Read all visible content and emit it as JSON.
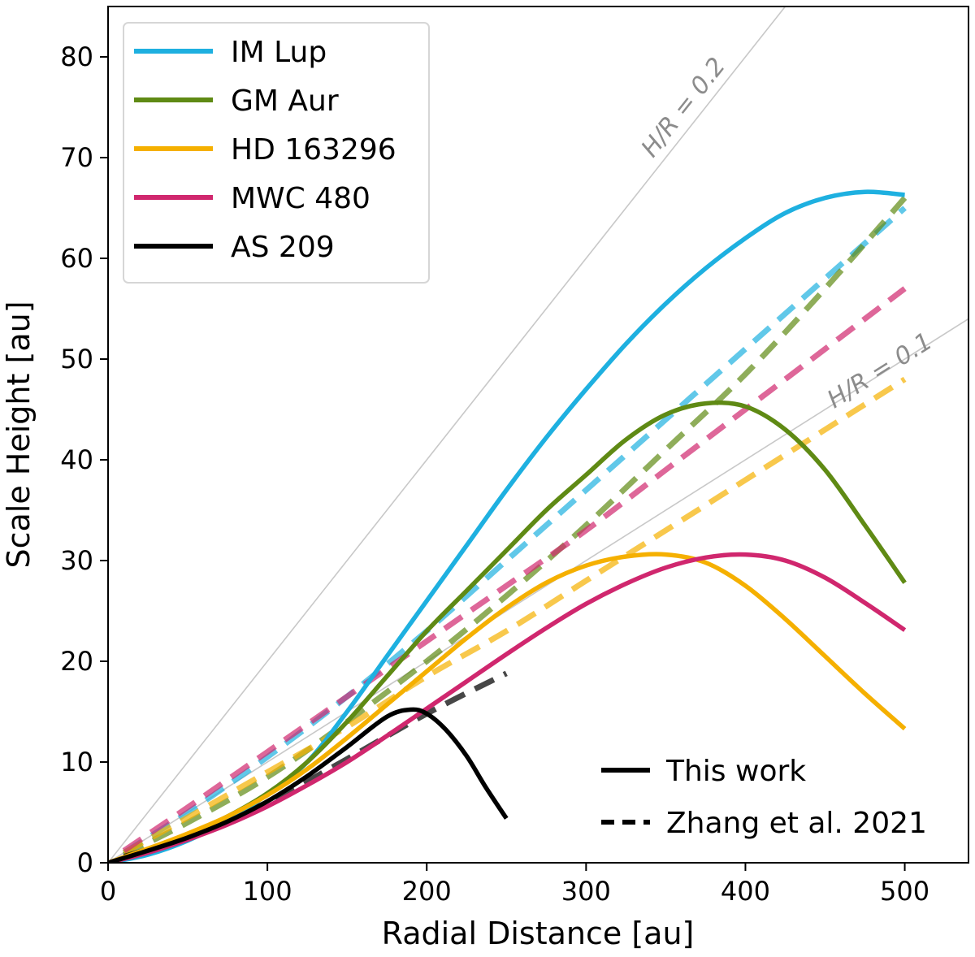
{
  "chart_data": {
    "type": "line",
    "title": "",
    "xlabel": "Radial Distance [au]",
    "ylabel": "Scale Height [au]",
    "xlim": [
      0,
      540
    ],
    "ylim": [
      0,
      85
    ],
    "xticks": [
      0,
      100,
      200,
      300,
      400,
      500
    ],
    "yticks": [
      0,
      10,
      20,
      30,
      40,
      50,
      60,
      70,
      80
    ],
    "grid": false,
    "legend_position": "top-left",
    "series": [
      {
        "name": "IM Lup",
        "color": "#1eb0e0",
        "this_work": {
          "x": [
            0,
            25,
            50,
            75,
            100,
            125,
            150,
            175,
            200,
            225,
            250,
            275,
            300,
            325,
            350,
            375,
            400,
            425,
            450,
            475,
            500
          ],
          "y": [
            0,
            0.8,
            2.2,
            4.2,
            6.8,
            10.0,
            15.0,
            20.5,
            26.0,
            31.5,
            37.0,
            42.2,
            47.0,
            51.5,
            55.5,
            59.0,
            62.0,
            64.5,
            66.0,
            66.6,
            66.3
          ]
        },
        "zhang_2021": {
          "x": [
            10,
            50,
            100,
            150,
            200,
            250,
            300,
            350,
            400,
            450,
            500
          ],
          "y": [
            1.0,
            5.0,
            10.5,
            16.5,
            23.0,
            30.0,
            37.0,
            44.0,
            51.0,
            58.0,
            65.0
          ]
        }
      },
      {
        "name": "GM Aur",
        "color": "#5f8a14",
        "this_work": {
          "x": [
            0,
            25,
            50,
            75,
            100,
            125,
            150,
            175,
            200,
            225,
            250,
            275,
            300,
            325,
            350,
            375,
            400,
            425,
            450,
            475,
            500
          ],
          "y": [
            0,
            1.3,
            2.8,
            4.6,
            6.9,
            10.0,
            14.0,
            18.5,
            23.0,
            27.0,
            31.0,
            35.0,
            38.5,
            42.0,
            44.5,
            45.6,
            45.3,
            43.0,
            39.0,
            33.5,
            27.8
          ]
        },
        "zhang_2021": {
          "x": [
            10,
            50,
            100,
            150,
            200,
            250,
            300,
            350,
            400,
            450,
            500
          ],
          "y": [
            0.8,
            4.0,
            8.5,
            14.0,
            20.0,
            26.5,
            33.5,
            41.0,
            48.5,
            57.0,
            66.0
          ]
        }
      },
      {
        "name": "HD 163296",
        "color": "#f5b000",
        "this_work": {
          "x": [
            0,
            25,
            50,
            75,
            100,
            125,
            150,
            175,
            200,
            225,
            250,
            275,
            300,
            325,
            350,
            375,
            400,
            425,
            450,
            475,
            500
          ],
          "y": [
            0,
            1.4,
            2.9,
            4.6,
            6.7,
            9.3,
            12.4,
            15.7,
            19.0,
            22.3,
            25.3,
            27.8,
            29.5,
            30.4,
            30.6,
            29.8,
            27.5,
            24.2,
            20.5,
            16.8,
            13.3
          ]
        },
        "zhang_2021": {
          "x": [
            10,
            50,
            100,
            150,
            200,
            250,
            300,
            350,
            400,
            450,
            500
          ],
          "y": [
            1.0,
            4.5,
            9.0,
            13.5,
            18.5,
            23.0,
            28.0,
            33.0,
            38.0,
            43.0,
            48.0
          ]
        }
      },
      {
        "name": "MWC 480",
        "color": "#d0276e",
        "this_work": {
          "x": [
            0,
            25,
            50,
            75,
            100,
            125,
            150,
            175,
            200,
            225,
            250,
            275,
            300,
            325,
            350,
            375,
            400,
            425,
            450,
            475,
            500
          ],
          "y": [
            0,
            1.0,
            2.3,
            3.8,
            5.6,
            7.7,
            10.0,
            12.6,
            15.3,
            18.0,
            20.7,
            23.3,
            25.7,
            27.7,
            29.3,
            30.3,
            30.6,
            30.0,
            28.3,
            25.8,
            23.1
          ]
        },
        "zhang_2021": {
          "x": [
            10,
            50,
            100,
            150,
            200,
            250,
            300,
            350,
            400,
            450,
            500
          ],
          "y": [
            1.2,
            5.5,
            11.0,
            16.5,
            22.0,
            27.5,
            33.0,
            39.0,
            45.0,
            51.0,
            57.0
          ]
        }
      },
      {
        "name": "AS 209",
        "color": "#000000",
        "this_work": {
          "x": [
            0,
            25,
            50,
            75,
            100,
            125,
            150,
            175,
            190,
            200,
            212,
            225,
            237,
            250
          ],
          "y": [
            0,
            1.2,
            2.5,
            4.1,
            6.1,
            8.6,
            11.5,
            14.5,
            15.2,
            14.8,
            13.2,
            10.6,
            7.5,
            4.4
          ]
        },
        "zhang_2021": {
          "x": [
            10,
            50,
            100,
            150,
            200,
            250
          ],
          "y": [
            0.6,
            2.6,
            6.0,
            10.3,
            14.8,
            18.8
          ]
        }
      }
    ],
    "reference_lines": [
      {
        "label": "H/R = 0.2",
        "slope": 0.2
      },
      {
        "label": "H/R = 0.1",
        "slope": 0.1
      }
    ],
    "style_legend": [
      {
        "label": "This work",
        "style": "solid"
      },
      {
        "label": "Zhang et al. 2021",
        "style": "dashed"
      }
    ]
  }
}
